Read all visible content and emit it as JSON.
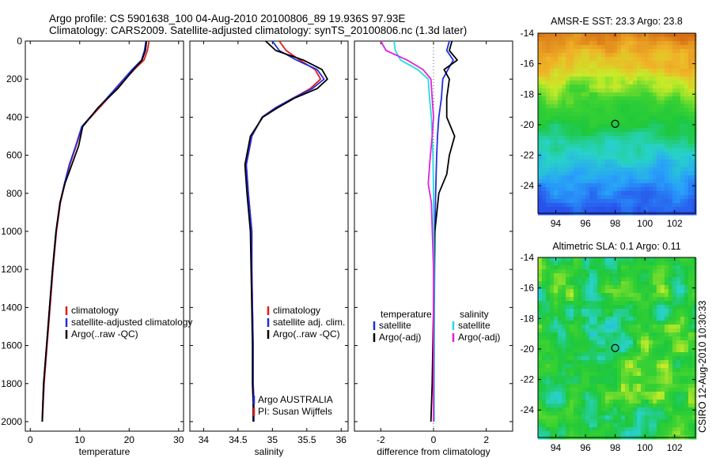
{
  "header": {
    "line1": "Argo profile: CS 5901638_100 04-Aug-2010 20100806_89 19.936S 97.93E",
    "line2": "Climatology: CARS2009. Satellite-adjusted climatology: synTS_20100806.nc (1.3d later)"
  },
  "side_label": "CSIRO 12-Aug-2010 10:30:33",
  "colors": {
    "climatology": "#e41a1c",
    "satellite": "#1f2de0",
    "argo": "#000000",
    "sal_satellite": "#22dddd",
    "sal_argo": "#e020e0"
  },
  "chart_data": [
    {
      "type": "line",
      "xlabel": "temperature",
      "xlim": [
        -1,
        31
      ],
      "ylim": [
        2050,
        0
      ],
      "xticks": [
        0,
        10,
        20,
        30
      ],
      "yticks": [
        0,
        200,
        400,
        600,
        800,
        1000,
        1200,
        1400,
        1600,
        1800,
        2000
      ],
      "legend_placement": "lower-left",
      "series": [
        {
          "name": "climatology",
          "color": "#e41a1c",
          "x": [
            24.0,
            23.7,
            23.0,
            21.0,
            17.5,
            14.0,
            10.5,
            9.3,
            8.0,
            7.0,
            6.1,
            5.3,
            4.6,
            4.0,
            3.4,
            2.8,
            2.45
          ],
          "y": [
            0,
            50,
            100,
            150,
            250,
            350,
            450,
            550,
            650,
            750,
            850,
            1000,
            1200,
            1400,
            1600,
            1800,
            2000
          ]
        },
        {
          "name": "satellite-adjusted climatology",
          "color": "#1f2de0",
          "x": [
            23.4,
            23.1,
            22.5,
            20.6,
            17.2,
            13.8,
            10.4,
            9.2,
            7.9,
            6.9,
            6.0,
            5.2,
            4.5,
            3.9,
            3.3,
            2.7,
            2.4
          ],
          "y": [
            0,
            50,
            100,
            150,
            250,
            350,
            450,
            550,
            650,
            750,
            850,
            1000,
            1200,
            1400,
            1600,
            1800,
            2000
          ]
        },
        {
          "name": "Argo(..raw -QC)",
          "color": "#000000",
          "x": [
            23.5,
            23.3,
            22.6,
            20.9,
            17.7,
            13.7,
            10.6,
            9.8,
            8.4,
            7.0,
            6.0,
            5.2,
            4.5,
            3.9,
            3.3,
            2.7,
            2.4
          ],
          "y": [
            0,
            50,
            100,
            150,
            250,
            350,
            450,
            550,
            650,
            750,
            850,
            1000,
            1200,
            1400,
            1600,
            1800,
            2000
          ]
        }
      ],
      "legend": [
        "climatology",
        "satellite-adjusted climatology",
        "Argo(..raw -QC)"
      ]
    },
    {
      "type": "line",
      "xlabel": "salinity",
      "xlim": [
        33.8,
        36.1
      ],
      "ylim": [
        2050,
        0
      ],
      "xticks": [
        34,
        34.5,
        35,
        35.5,
        36
      ],
      "yticks": [
        0,
        200,
        400,
        600,
        800,
        1000,
        1200,
        1400,
        1600,
        1800,
        2000
      ],
      "legend_placement": "lower-right",
      "series": [
        {
          "name": "climatology",
          "color": "#e41a1c",
          "x": [
            35.1,
            35.2,
            35.4,
            35.62,
            35.7,
            35.55,
            35.3,
            35.05,
            34.85,
            34.7,
            34.62,
            34.65,
            34.7,
            34.7,
            34.71,
            34.72,
            34.72,
            34.73,
            34.73
          ],
          "y": [
            0,
            50,
            100,
            150,
            200,
            250,
            300,
            350,
            400,
            500,
            650,
            800,
            1000,
            1200,
            1400,
            1600,
            1800,
            1900,
            2000
          ]
        },
        {
          "name": "satellite adj. clim.",
          "color": "#1f2de0",
          "x": [
            35.0,
            35.1,
            35.35,
            35.65,
            35.75,
            35.58,
            35.3,
            35.05,
            34.85,
            34.7,
            34.62,
            34.65,
            34.7,
            34.7,
            34.71,
            34.72,
            34.72,
            34.73,
            34.73
          ],
          "y": [
            0,
            50,
            100,
            150,
            200,
            250,
            300,
            350,
            400,
            500,
            650,
            800,
            1000,
            1200,
            1400,
            1600,
            1800,
            1900,
            2000
          ]
        },
        {
          "name": "Argo(..raw -QC)",
          "color": "#000000",
          "x": [
            34.9,
            35.05,
            35.45,
            35.72,
            35.8,
            35.65,
            35.32,
            35.08,
            34.86,
            34.68,
            34.6,
            34.63,
            34.68,
            34.69,
            34.7,
            34.71,
            34.71,
            34.72,
            34.72
          ],
          "y": [
            0,
            50,
            100,
            150,
            200,
            250,
            300,
            350,
            400,
            500,
            650,
            800,
            1000,
            1200,
            1400,
            1600,
            1800,
            1900,
            2000
          ]
        }
      ],
      "legend": [
        "climatology",
        "satellite adj. clim.",
        "Argo(..raw -QC)"
      ],
      "annotations": [
        "Argo AUSTRALIA",
        "PI: Susan Wijffels"
      ]
    },
    {
      "type": "line",
      "xlabel": "difference from climatology",
      "xlim": [
        -3,
        3
      ],
      "ylim": [
        2050,
        0
      ],
      "xticks": [
        -2,
        0,
        2
      ],
      "yticks": [
        0,
        200,
        400,
        600,
        800,
        1000,
        1200,
        1400,
        1600,
        1800,
        2000
      ],
      "legend_placement": "lower-center",
      "legend_groups": [
        {
          "title": "temperature",
          "entries": [
            "satellite",
            "Argo(-adj)"
          ]
        },
        {
          "title": "salinity",
          "entries": [
            "satellite",
            "Argo(-adj)"
          ]
        }
      ],
      "series": [
        {
          "name": "temperature satellite",
          "color": "#1f2de0",
          "x": [
            0.6,
            0.5,
            0.75,
            0.55,
            0.35,
            0.3,
            0.2,
            0.15,
            0.12,
            0.1,
            0.08,
            0.05,
            0.03,
            0.02,
            0.02
          ],
          "y": [
            0,
            50,
            100,
            150,
            200,
            300,
            400,
            500,
            600,
            700,
            800,
            1000,
            1400,
            1800,
            2000
          ]
        },
        {
          "name": "temperature Argo(-adj)",
          "color": "#000000",
          "x": [
            0.7,
            0.6,
            0.9,
            0.4,
            0.6,
            0.5,
            0.5,
            0.8,
            0.6,
            0.5,
            0.2,
            0.05,
            0.0,
            -0.05,
            -0.1
          ],
          "y": [
            0,
            50,
            100,
            150,
            200,
            300,
            400,
            500,
            600,
            700,
            800,
            1000,
            1400,
            1800,
            2000
          ]
        },
        {
          "name": "salinity satellite",
          "color": "#22dddd",
          "x": [
            -1.5,
            -1.45,
            -1.25,
            -0.6,
            -0.2,
            -0.15,
            -0.08,
            -0.05,
            -0.02,
            0.0,
            0.02,
            0.02
          ],
          "y": [
            0,
            50,
            100,
            150,
            200,
            300,
            400,
            500,
            600,
            800,
            1200,
            2000
          ]
        },
        {
          "name": "salinity Argo(-adj)",
          "color": "#e020e0",
          "x": [
            -2.0,
            -1.8,
            -1.0,
            -0.4,
            -0.1,
            -0.05,
            0.0,
            -0.05,
            -0.12,
            -0.2,
            -0.08,
            0.0,
            0.0
          ],
          "y": [
            0,
            50,
            100,
            150,
            200,
            300,
            400,
            500,
            600,
            750,
            850,
            1200,
            2000
          ]
        }
      ]
    },
    {
      "type": "heatmap",
      "title": "AMSR-E SST: 23.3 Argo: 23.8",
      "xlim": [
        92.8,
        103.4
      ],
      "ylim": [
        -25.8,
        -14
      ],
      "xticks": [
        94,
        96,
        98,
        100,
        102
      ],
      "yticks": [
        -14,
        -16,
        -18,
        -20,
        -22,
        -24
      ],
      "marker": {
        "x": 98.0,
        "y": -19.94
      }
    },
    {
      "type": "heatmap",
      "title": "Altimetric SLA: 0.1 Argo: 0.11",
      "xlim": [
        92.8,
        103.4
      ],
      "ylim": [
        -25.8,
        -14
      ],
      "xticks": [
        94,
        96,
        98,
        100,
        102
      ],
      "yticks": [
        -14,
        -16,
        -18,
        -20,
        -22,
        -24
      ],
      "marker": {
        "x": 98.0,
        "y": -19.94
      }
    }
  ]
}
